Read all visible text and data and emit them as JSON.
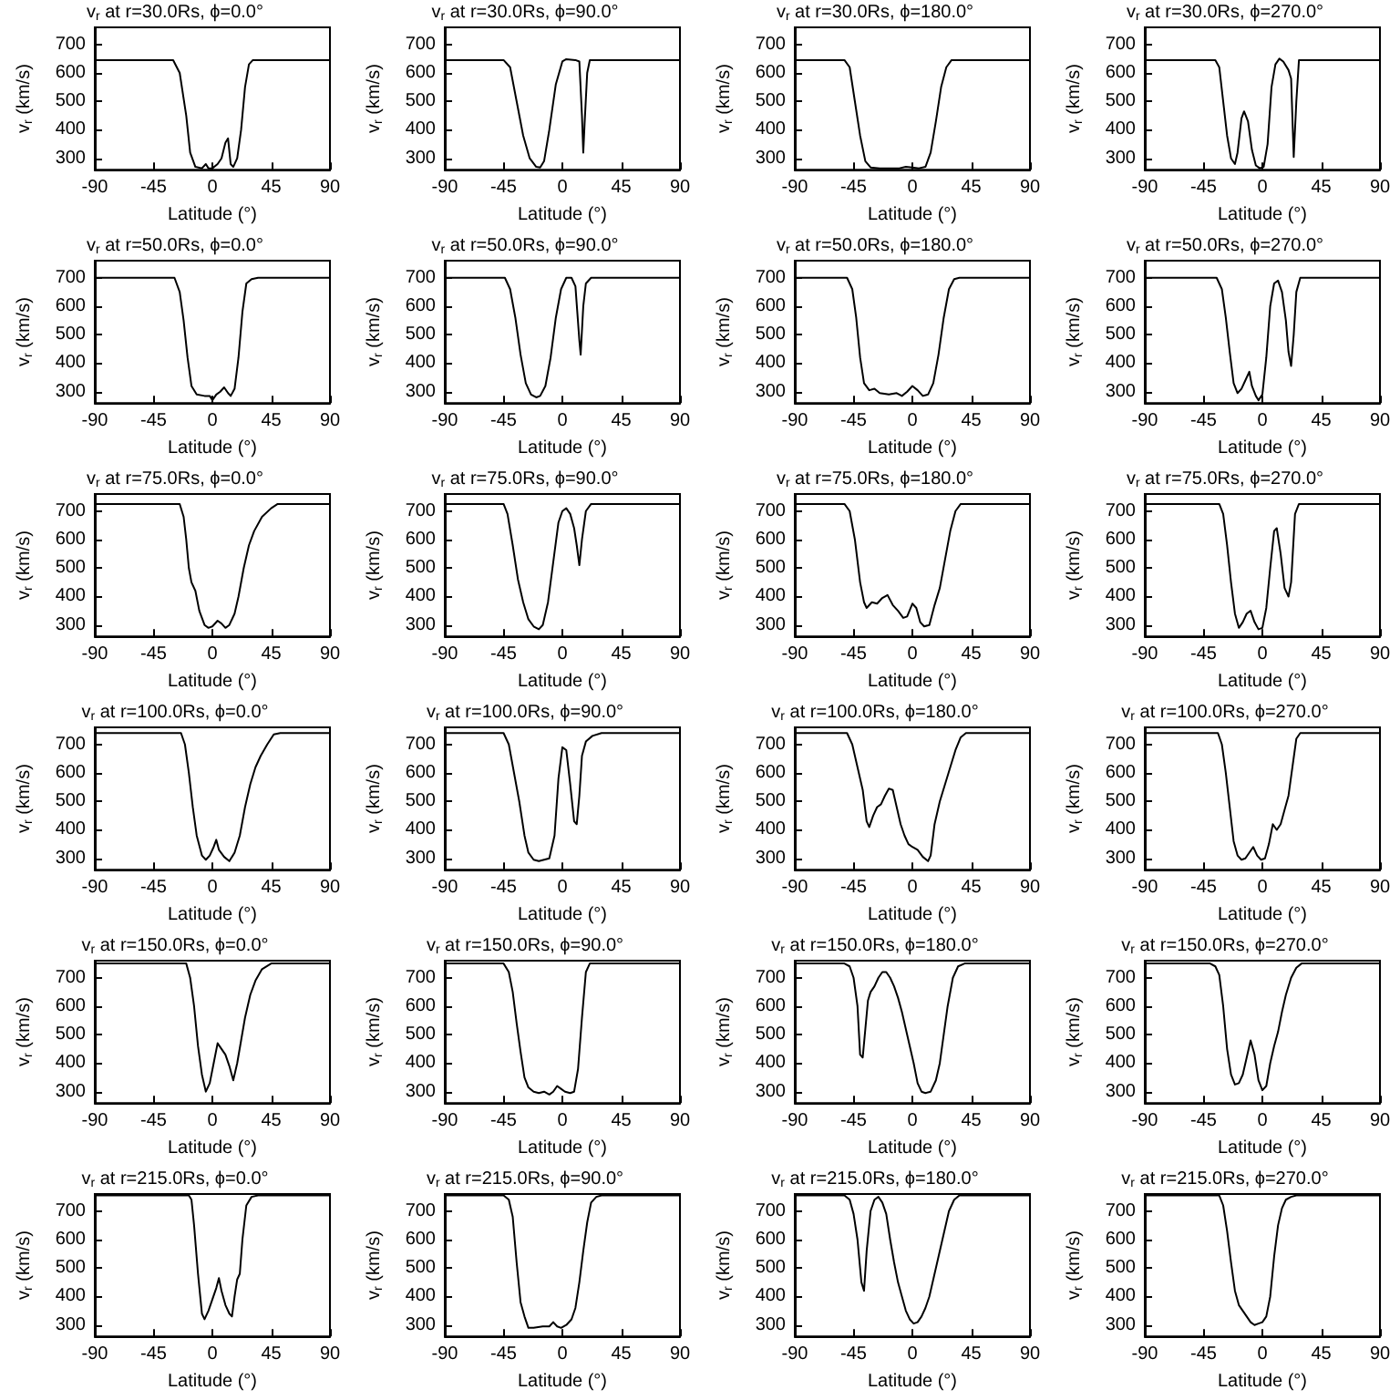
{
  "chart_data": [
    {
      "type": "line",
      "title": "v$_{r}$ at r=30.0Rs, ϕ=0.0°",
      "xlabel": "Latitude (°)",
      "ylabel": "v$_{r}$ (km/s)",
      "color": "#000000",
      "xlim": [
        -90,
        90
      ],
      "xticks": [
        -90,
        -45,
        0,
        45,
        90
      ],
      "ylim": [
        260,
        760
      ],
      "yticks": [
        300,
        400,
        500,
        600,
        700
      ],
      "x": [
        -90,
        -30,
        -25,
        -20,
        -17,
        -13,
        -8,
        -5,
        -3,
        0,
        4,
        7,
        10,
        12,
        14,
        16,
        19,
        22,
        25,
        28,
        31,
        90
      ],
      "values": [
        645,
        645,
        600,
        450,
        320,
        270,
        265,
        280,
        265,
        265,
        280,
        300,
        355,
        370,
        280,
        270,
        300,
        400,
        550,
        630,
        645,
        645
      ]
    },
    {
      "type": "line",
      "title": "v$_{r}$ at r=30.0Rs, ϕ=90.0°",
      "xlabel": "Latitude (°)",
      "ylabel": "v$_{r}$ (km/s)",
      "color": "#000000",
      "xlim": [
        -90,
        90
      ],
      "xticks": [
        -90,
        -45,
        0,
        45,
        90
      ],
      "ylim": [
        260,
        760
      ],
      "yticks": [
        300,
        400,
        500,
        600,
        700
      ],
      "x": [
        -90,
        -45,
        -40,
        -35,
        -30,
        -25,
        -20,
        -17,
        -14,
        -10,
        -5,
        0,
        3,
        10,
        13,
        15,
        16,
        17,
        19,
        21,
        90
      ],
      "values": [
        645,
        645,
        620,
        500,
        380,
        300,
        270,
        268,
        290,
        400,
        560,
        640,
        648,
        645,
        640,
        450,
        320,
        420,
        600,
        645,
        645
      ]
    },
    {
      "type": "line",
      "title": "v$_{r}$ at r=30.0Rs, ϕ=180.0°",
      "xlabel": "Latitude (°)",
      "ylabel": "v$_{r}$ (km/s)",
      "color": "#000000",
      "xlim": [
        -90,
        90
      ],
      "xticks": [
        -90,
        -45,
        0,
        45,
        90
      ],
      "ylim": [
        260,
        760
      ],
      "yticks": [
        300,
        400,
        500,
        600,
        700
      ],
      "x": [
        -90,
        -52,
        -48,
        -44,
        -40,
        -36,
        -32,
        -25,
        -10,
        -5,
        0,
        5,
        10,
        14,
        18,
        22,
        26,
        30,
        90
      ],
      "values": [
        645,
        645,
        620,
        500,
        380,
        290,
        268,
        265,
        265,
        270,
        268,
        265,
        270,
        320,
        430,
        550,
        620,
        645,
        645
      ]
    },
    {
      "type": "line",
      "title": "v$_{r}$ at r=30.0Rs, ϕ=270.0°",
      "xlabel": "Latitude (°)",
      "ylabel": "v$_{r}$ (km/s)",
      "color": "#000000",
      "xlim": [
        -90,
        90
      ],
      "xticks": [
        -90,
        -45,
        0,
        45,
        90
      ],
      "ylim": [
        260,
        760
      ],
      "yticks": [
        300,
        400,
        500,
        600,
        700
      ],
      "x": [
        -90,
        -36,
        -33,
        -30,
        -27,
        -24,
        -21,
        -19,
        -16,
        -14,
        -11,
        -8,
        -5,
        -2,
        1,
        4,
        7,
        10,
        13,
        16,
        20,
        22,
        24,
        26,
        28,
        90
      ],
      "values": [
        645,
        645,
        620,
        500,
        380,
        300,
        280,
        320,
        440,
        465,
        430,
        330,
        275,
        265,
        270,
        350,
        550,
        630,
        650,
        640,
        610,
        580,
        305,
        500,
        645,
        645
      ]
    },
    {
      "type": "line",
      "title": "v$_{r}$ at r=50.0Rs, ϕ=0.0°",
      "xlabel": "Latitude (°)",
      "ylabel": "v$_{r}$ (km/s)",
      "color": "#000000",
      "xlim": [
        -90,
        90
      ],
      "xticks": [
        -90,
        -45,
        0,
        45,
        90
      ],
      "ylim": [
        260,
        760
      ],
      "yticks": [
        300,
        400,
        500,
        600,
        700
      ],
      "x": [
        -90,
        -29,
        -25,
        -22,
        -19,
        -16,
        -12,
        -6,
        -2,
        0,
        3,
        6,
        9,
        12,
        14,
        17,
        20,
        23,
        26,
        30,
        35,
        90
      ],
      "values": [
        700,
        700,
        650,
        550,
        420,
        320,
        290,
        285,
        285,
        270,
        290,
        300,
        315,
        295,
        285,
        310,
        420,
        580,
        680,
        695,
        700,
        700
      ]
    },
    {
      "type": "line",
      "title": "v$_{r}$ at r=50.0Rs, ϕ=90.0°",
      "xlabel": "Latitude (°)",
      "ylabel": "v$_{r}$ (km/s)",
      "color": "#000000",
      "xlim": [
        -90,
        90
      ],
      "xticks": [
        -90,
        -45,
        0,
        45,
        90
      ],
      "ylim": [
        260,
        760
      ],
      "yticks": [
        300,
        400,
        500,
        600,
        700
      ],
      "x": [
        -90,
        -44,
        -40,
        -36,
        -32,
        -28,
        -24,
        -20,
        -17,
        -13,
        -9,
        -5,
        -1,
        3,
        7,
        10,
        13,
        14,
        16,
        18,
        22,
        90
      ],
      "values": [
        700,
        700,
        660,
        560,
        430,
        330,
        290,
        280,
        285,
        320,
        420,
        560,
        660,
        700,
        700,
        670,
        480,
        430,
        600,
        680,
        700,
        700
      ]
    },
    {
      "type": "line",
      "title": "v$_{r}$ at r=50.0Rs, ϕ=180.0°",
      "xlabel": "Latitude (°)",
      "ylabel": "v$_{r}$ (km/s)",
      "color": "#000000",
      "xlim": [
        -90,
        90
      ],
      "xticks": [
        -90,
        -45,
        0,
        45,
        90
      ],
      "ylim": [
        260,
        760
      ],
      "yticks": [
        300,
        400,
        500,
        600,
        700
      ],
      "x": [
        -90,
        -50,
        -46,
        -43,
        -40,
        -37,
        -33,
        -29,
        -25,
        -18,
        -12,
        -8,
        -4,
        0,
        4,
        8,
        12,
        16,
        20,
        24,
        28,
        32,
        36,
        90
      ],
      "values": [
        700,
        700,
        660,
        560,
        420,
        330,
        305,
        310,
        295,
        290,
        295,
        285,
        300,
        320,
        305,
        285,
        290,
        330,
        430,
        560,
        660,
        695,
        700,
        700
      ]
    },
    {
      "type": "line",
      "title": "v$_{r}$ at r=50.0Rs, ϕ=270.0°",
      "xlabel": "Latitude (°)",
      "ylabel": "v$_{r}$ (km/s)",
      "color": "#000000",
      "xlim": [
        -90,
        90
      ],
      "xticks": [
        -90,
        -45,
        0,
        45,
        90
      ],
      "ylim": [
        260,
        760
      ],
      "yticks": [
        300,
        400,
        500,
        600,
        700
      ],
      "x": [
        -90,
        -35,
        -31,
        -28,
        -25,
        -22,
        -19,
        -16,
        -13,
        -10,
        -8,
        -5,
        -3,
        0,
        3,
        6,
        9,
        12,
        15,
        18,
        20,
        22,
        24,
        26,
        29,
        90
      ],
      "values": [
        700,
        700,
        660,
        560,
        440,
        330,
        295,
        310,
        340,
        370,
        320,
        285,
        270,
        290,
        420,
        600,
        680,
        690,
        650,
        550,
        440,
        390,
        500,
        650,
        700,
        700
      ]
    },
    {
      "type": "line",
      "title": "v$_{r}$ at r=75.0Rs, ϕ=0.0°",
      "xlabel": "Latitude (°)",
      "ylabel": "v$_{r}$ (km/s)",
      "color": "#000000",
      "xlim": [
        -90,
        90
      ],
      "xticks": [
        -90,
        -45,
        0,
        45,
        90
      ],
      "ylim": [
        260,
        760
      ],
      "yticks": [
        300,
        400,
        500,
        600,
        700
      ],
      "x": [
        -90,
        -25,
        -22,
        -20,
        -18,
        -16,
        -13,
        -10,
        -6,
        -3,
        0,
        4,
        7,
        10,
        13,
        17,
        20,
        24,
        28,
        32,
        38,
        45,
        50,
        90
      ],
      "values": [
        725,
        725,
        680,
        600,
        500,
        450,
        420,
        350,
        300,
        290,
        295,
        315,
        305,
        290,
        300,
        340,
        400,
        500,
        580,
        630,
        680,
        710,
        725,
        725
      ]
    },
    {
      "type": "line",
      "title": "v$_{r}$ at r=75.0Rs, ϕ=90.0°",
      "xlabel": "Latitude (°)",
      "ylabel": "v$_{r}$ (km/s)",
      "color": "#000000",
      "xlim": [
        -90,
        90
      ],
      "xticks": [
        -90,
        -45,
        0,
        45,
        90
      ],
      "ylim": [
        260,
        760
      ],
      "yticks": [
        300,
        400,
        500,
        600,
        700
      ],
      "x": [
        -90,
        -45,
        -42,
        -38,
        -34,
        -30,
        -26,
        -22,
        -18,
        -15,
        -11,
        -7,
        -3,
        0,
        3,
        6,
        9,
        11,
        13,
        15,
        18,
        22,
        90
      ],
      "values": [
        725,
        725,
        690,
        580,
        460,
        380,
        320,
        295,
        285,
        300,
        380,
        520,
        660,
        700,
        710,
        690,
        640,
        580,
        510,
        600,
        700,
        725,
        725
      ]
    },
    {
      "type": "line",
      "title": "v$_{r}$ at r=75.0Rs, ϕ=180.0°",
      "xlabel": "Latitude (°)",
      "ylabel": "v$_{r}$ (km/s)",
      "color": "#000000",
      "xlim": [
        -90,
        90
      ],
      "xticks": [
        -90,
        -45,
        0,
        45,
        90
      ],
      "ylim": [
        260,
        760
      ],
      "yticks": [
        300,
        400,
        500,
        600,
        700
      ],
      "x": [
        -90,
        -52,
        -48,
        -44,
        -40,
        -37,
        -35,
        -31,
        -27,
        -23,
        -19,
        -15,
        -11,
        -7,
        -4,
        0,
        3,
        6,
        9,
        13,
        17,
        21,
        25,
        29,
        33,
        37,
        90
      ],
      "values": [
        725,
        725,
        700,
        600,
        450,
        380,
        360,
        380,
        375,
        395,
        405,
        370,
        350,
        325,
        330,
        375,
        360,
        310,
        295,
        300,
        370,
        430,
        530,
        630,
        700,
        725,
        725
      ]
    },
    {
      "type": "line",
      "title": "v$_{r}$ at r=75.0Rs, ϕ=270.0°",
      "xlabel": "Latitude (°)",
      "ylabel": "v$_{r}$ (km/s)",
      "color": "#000000",
      "xlim": [
        -90,
        90
      ],
      "xticks": [
        -90,
        -45,
        0,
        45,
        90
      ],
      "ylim": [
        260,
        760
      ],
      "yticks": [
        300,
        400,
        500,
        600,
        700
      ],
      "x": [
        -90,
        -33,
        -30,
        -27,
        -24,
        -21,
        -18,
        -15,
        -12,
        -9,
        -6,
        -3,
        0,
        3,
        6,
        9,
        11,
        14,
        17,
        20,
        22,
        25,
        28,
        90
      ],
      "values": [
        725,
        725,
        690,
        580,
        450,
        340,
        290,
        310,
        340,
        350,
        310,
        285,
        290,
        360,
        500,
        630,
        640,
        550,
        430,
        400,
        450,
        690,
        725,
        725
      ]
    },
    {
      "type": "line",
      "title": "v$_{r}$ at r=100.0Rs, ϕ=0.0°",
      "xlabel": "Latitude (°)",
      "ylabel": "v$_{r}$ (km/s)",
      "color": "#000000",
      "xlim": [
        -90,
        90
      ],
      "xticks": [
        -90,
        -45,
        0,
        45,
        90
      ],
      "ylim": [
        260,
        760
      ],
      "yticks": [
        300,
        400,
        500,
        600,
        700
      ],
      "x": [
        -90,
        -24,
        -21,
        -18,
        -15,
        -12,
        -8,
        -5,
        -2,
        1,
        3,
        5,
        9,
        13,
        17,
        21,
        25,
        29,
        33,
        37,
        42,
        47,
        52,
        90
      ],
      "values": [
        740,
        740,
        700,
        600,
        480,
        380,
        310,
        295,
        310,
        340,
        365,
        330,
        305,
        290,
        320,
        380,
        480,
        560,
        620,
        660,
        700,
        735,
        740,
        740
      ]
    },
    {
      "type": "line",
      "title": "v$_{r}$ at r=100.0Rs, ϕ=90.0°",
      "xlabel": "Latitude (°)",
      "ylabel": "v$_{r}$ (km/s)",
      "color": "#000000",
      "xlim": [
        -90,
        90
      ],
      "xticks": [
        -90,
        -45,
        0,
        45,
        90
      ],
      "ylim": [
        260,
        760
      ],
      "yticks": [
        300,
        400,
        500,
        600,
        700
      ],
      "x": [
        -90,
        -45,
        -41,
        -37,
        -33,
        -29,
        -26,
        -22,
        -18,
        -14,
        -10,
        -6,
        -3,
        0,
        3,
        6,
        9,
        11,
        13,
        15,
        18,
        23,
        30,
        90
      ],
      "values": [
        740,
        740,
        700,
        600,
        500,
        380,
        320,
        295,
        290,
        295,
        300,
        380,
        580,
        690,
        680,
        560,
        430,
        420,
        520,
        660,
        710,
        730,
        740,
        740
      ]
    },
    {
      "type": "line",
      "title": "v$_{r}$ at r=100.0Rs, ϕ=180.0°",
      "xlabel": "Latitude (°)",
      "ylabel": "v$_{r}$ (km/s)",
      "color": "#000000",
      "xlim": [
        -90,
        90
      ],
      "xticks": [
        -90,
        -45,
        0,
        45,
        90
      ],
      "ylim": [
        260,
        760
      ],
      "yticks": [
        300,
        400,
        500,
        600,
        700
      ],
      "x": [
        -90,
        -50,
        -46,
        -42,
        -38,
        -35,
        -33,
        -30,
        -27,
        -24,
        -21,
        -18,
        -15,
        -12,
        -9,
        -6,
        -3,
        0,
        4,
        8,
        12,
        14,
        17,
        21,
        25,
        29,
        33,
        37,
        41,
        90
      ],
      "values": [
        740,
        740,
        700,
        620,
        540,
        430,
        410,
        450,
        480,
        490,
        520,
        545,
        540,
        480,
        420,
        380,
        350,
        340,
        330,
        305,
        290,
        310,
        420,
        500,
        560,
        620,
        680,
        725,
        740,
        740
      ]
    },
    {
      "type": "line",
      "title": "v$_{r}$ at r=100.0Rs, ϕ=270.0°",
      "xlabel": "Latitude (°)",
      "ylabel": "v$_{r}$ (km/s)",
      "color": "#000000",
      "xlim": [
        -90,
        90
      ],
      "xticks": [
        -90,
        -45,
        0,
        45,
        90
      ],
      "ylim": [
        260,
        760
      ],
      "yticks": [
        300,
        400,
        500,
        600,
        700
      ],
      "x": [
        -90,
        -34,
        -31,
        -28,
        -25,
        -22,
        -19,
        -16,
        -13,
        -10,
        -7,
        -4,
        -1,
        2,
        5,
        8,
        11,
        14,
        17,
        20,
        23,
        26,
        29,
        90
      ],
      "values": [
        740,
        740,
        700,
        600,
        480,
        360,
        310,
        295,
        300,
        320,
        340,
        310,
        295,
        300,
        350,
        420,
        400,
        420,
        470,
        520,
        620,
        720,
        740,
        740
      ]
    },
    {
      "type": "line",
      "title": "v$_{r}$ at r=150.0Rs, ϕ=0.0°",
      "xlabel": "Latitude (°)",
      "ylabel": "v$_{r}$ (km/s)",
      "color": "#000000",
      "xlim": [
        -90,
        90
      ],
      "xticks": [
        -90,
        -45,
        0,
        45,
        90
      ],
      "ylim": [
        260,
        760
      ],
      "yticks": [
        300,
        400,
        500,
        600,
        700
      ],
      "x": [
        -90,
        -20,
        -17,
        -14,
        -11,
        -8,
        -5,
        -2,
        1,
        4,
        7,
        10,
        13,
        16,
        19,
        22,
        25,
        29,
        33,
        38,
        45,
        90
      ],
      "values": [
        750,
        750,
        700,
        600,
        460,
        360,
        300,
        330,
        400,
        470,
        450,
        430,
        390,
        340,
        400,
        480,
        560,
        640,
        690,
        730,
        750,
        750
      ]
    },
    {
      "type": "line",
      "title": "v$_{r}$ at r=150.0Rs, ϕ=90.0°",
      "xlabel": "Latitude (°)",
      "ylabel": "v$_{r}$ (km/s)",
      "color": "#000000",
      "xlim": [
        -90,
        90
      ],
      "xticks": [
        -90,
        -45,
        0,
        45,
        90
      ],
      "ylim": [
        260,
        760
      ],
      "yticks": [
        300,
        400,
        500,
        600,
        700
      ],
      "x": [
        -90,
        -45,
        -41,
        -38,
        -35,
        -32,
        -29,
        -26,
        -22,
        -18,
        -14,
        -10,
        -7,
        -4,
        -1,
        2,
        6,
        9,
        12,
        15,
        18,
        21,
        90
      ],
      "values": [
        750,
        750,
        720,
        650,
        540,
        440,
        350,
        315,
        300,
        295,
        300,
        290,
        300,
        320,
        310,
        300,
        295,
        300,
        380,
        560,
        720,
        750,
        750
      ]
    },
    {
      "type": "line",
      "title": "v$_{r}$ at r=150.0Rs, ϕ=180.0°",
      "xlabel": "Latitude (°)",
      "ylabel": "v$_{r}$ (km/s)",
      "color": "#000000",
      "xlim": [
        -90,
        90
      ],
      "xticks": [
        -90,
        -45,
        0,
        45,
        90
      ],
      "ylim": [
        260,
        760
      ],
      "yticks": [
        300,
        400,
        500,
        600,
        700
      ],
      "x": [
        -90,
        -52,
        -48,
        -45,
        -42,
        -40,
        -38,
        -36,
        -34,
        -32,
        -29,
        -26,
        -23,
        -20,
        -17,
        -14,
        -11,
        -8,
        -5,
        -2,
        1,
        4,
        7,
        10,
        14,
        18,
        21,
        24,
        27,
        31,
        35,
        40,
        90
      ],
      "values": [
        750,
        750,
        740,
        700,
        600,
        430,
        420,
        520,
        620,
        650,
        670,
        700,
        720,
        720,
        700,
        670,
        630,
        580,
        520,
        460,
        400,
        330,
        300,
        295,
        300,
        340,
        400,
        500,
        600,
        700,
        740,
        750,
        750
      ]
    },
    {
      "type": "line",
      "title": "v$_{r}$ at r=150.0Rs, ϕ=270.0°",
      "xlabel": "Latitude (°)",
      "ylabel": "v$_{r}$ (km/s)",
      "color": "#000000",
      "xlim": [
        -90,
        90
      ],
      "xticks": [
        -90,
        -45,
        0,
        45,
        90
      ],
      "ylim": [
        260,
        760
      ],
      "yticks": [
        300,
        400,
        500,
        600,
        700
      ],
      "x": [
        -90,
        -40,
        -36,
        -33,
        -30,
        -27,
        -24,
        -21,
        -18,
        -15,
        -12,
        -9,
        -6,
        -3,
        0,
        3,
        6,
        9,
        12,
        15,
        18,
        22,
        26,
        30,
        90
      ],
      "values": [
        750,
        750,
        740,
        710,
        600,
        450,
        360,
        325,
        330,
        360,
        420,
        480,
        430,
        340,
        305,
        320,
        400,
        460,
        510,
        580,
        640,
        700,
        735,
        750,
        750
      ]
    },
    {
      "type": "line",
      "title": "v$_{r}$ at r=215.0Rs, ϕ=0.0°",
      "xlabel": "Latitude (°)",
      "ylabel": "v$_{r}$ (km/s)",
      "color": "#000000",
      "xlim": [
        -90,
        90
      ],
      "xticks": [
        -90,
        -45,
        0,
        45,
        90
      ],
      "ylim": [
        260,
        760
      ],
      "yticks": [
        300,
        400,
        500,
        600,
        700
      ],
      "x": [
        -90,
        -18,
        -16,
        -14,
        -11,
        -8,
        -6,
        -3,
        0,
        3,
        5,
        7,
        10,
        13,
        15,
        17,
        19,
        21,
        23,
        26,
        30,
        35,
        90
      ],
      "values": [
        755,
        755,
        740,
        650,
        480,
        340,
        320,
        350,
        390,
        430,
        465,
        420,
        370,
        340,
        330,
        400,
        460,
        480,
        600,
        720,
        750,
        755,
        755
      ]
    },
    {
      "type": "line",
      "title": "v$_{r}$ at r=215.0Rs, ϕ=90.0°",
      "xlabel": "Latitude (°)",
      "ylabel": "v$_{r}$ (km/s)",
      "color": "#000000",
      "xlim": [
        -90,
        90
      ],
      "xticks": [
        -90,
        -45,
        0,
        45,
        90
      ],
      "ylim": [
        260,
        760
      ],
      "yticks": [
        300,
        400,
        500,
        600,
        700
      ],
      "x": [
        -90,
        -45,
        -41,
        -38,
        -35,
        -32,
        -29,
        -26,
        -22,
        -15,
        -10,
        -7,
        -4,
        -1,
        3,
        7,
        10,
        13,
        16,
        19,
        22,
        26,
        30,
        90
      ],
      "values": [
        755,
        755,
        740,
        680,
        520,
        380,
        330,
        290,
        290,
        295,
        295,
        310,
        295,
        290,
        300,
        320,
        360,
        450,
        560,
        660,
        730,
        750,
        755,
        755
      ]
    },
    {
      "type": "line",
      "title": "v$_{r}$ at r=215.0Rs, ϕ=180.0°",
      "xlabel": "Latitude (°)",
      "ylabel": "v$_{r}$ (km/s)",
      "color": "#000000",
      "xlim": [
        -90,
        90
      ],
      "xticks": [
        -90,
        -45,
        0,
        45,
        90
      ],
      "ylim": [
        260,
        760
      ],
      "yticks": [
        300,
        400,
        500,
        600,
        700
      ],
      "x": [
        -90,
        -52,
        -48,
        -45,
        -42,
        -39,
        -37,
        -35,
        -32,
        -29,
        -26,
        -23,
        -20,
        -17,
        -14,
        -11,
        -8,
        -5,
        -2,
        1,
        4,
        7,
        10,
        13,
        16,
        20,
        24,
        28,
        32,
        36,
        90
      ],
      "values": [
        755,
        755,
        740,
        690,
        600,
        450,
        420,
        560,
        700,
        740,
        750,
        730,
        690,
        600,
        520,
        450,
        400,
        350,
        320,
        305,
        310,
        330,
        360,
        400,
        460,
        540,
        620,
        700,
        740,
        755,
        755
      ]
    },
    {
      "type": "line",
      "title": "v$_{r}$ at r=215.0Rs, ϕ=270.0°",
      "xlabel": "Latitude (°)",
      "ylabel": "v$_{r}$ (km/s)",
      "color": "#000000",
      "xlim": [
        -90,
        90
      ],
      "xticks": [
        -90,
        -45,
        0,
        45,
        90
      ],
      "ylim": [
        260,
        760
      ],
      "yticks": [
        300,
        400,
        500,
        600,
        700
      ],
      "x": [
        -90,
        -33,
        -30,
        -27,
        -24,
        -21,
        -18,
        -15,
        -12,
        -9,
        -6,
        -3,
        0,
        3,
        6,
        9,
        12,
        15,
        18,
        22,
        26,
        90
      ],
      "values": [
        755,
        755,
        720,
        630,
        520,
        420,
        370,
        350,
        330,
        310,
        300,
        305,
        310,
        330,
        400,
        540,
        650,
        710,
        740,
        750,
        755,
        755
      ]
    }
  ]
}
